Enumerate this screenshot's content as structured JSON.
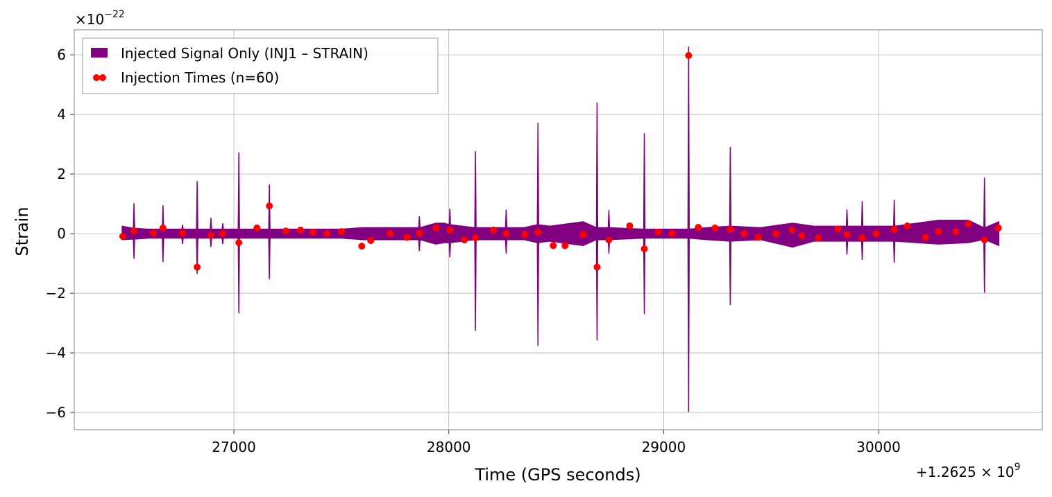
{
  "chart_data": {
    "type": "signal",
    "xlabel": "Time (GPS seconds)",
    "ylabel": "Strain",
    "x_offset": {
      "base": "+1.2625 × 10",
      "exponent": "9"
    },
    "y_offset": {
      "base": "×10",
      "exponent": "−22"
    },
    "xlim": [
      26257,
      30762
    ],
    "ylim": [
      -6.58,
      6.84
    ],
    "xticks": [
      27000,
      28000,
      29000,
      30000
    ],
    "yticks": [
      {
        "value": -6,
        "label": "−6"
      },
      {
        "value": -4,
        "label": "−4"
      },
      {
        "value": -2,
        "label": "−2"
      },
      0,
      2,
      4,
      6
    ],
    "grid": true,
    "legend": "upper left",
    "series": [
      {
        "name": "Injected Signal Only (INJ1 – STRAIN)",
        "color": "#800080",
        "x": [
          26480,
          26532,
          26535,
          26538,
          26600,
          26667,
          26670,
          26673,
          26758,
          26761,
          26764,
          26826,
          26829,
          26832,
          26890,
          26893,
          26896,
          26945,
          26948,
          26951,
          27020,
          27023,
          27026,
          27100,
          27162,
          27165,
          27168,
          27300,
          27500,
          27600,
          27800,
          27860,
          27863,
          27866,
          27940,
          27980,
          28002,
          28005,
          28008,
          28121,
          28124,
          28127,
          28264,
          28267,
          28270,
          28350,
          28412,
          28415,
          28418,
          28470,
          28625,
          28687,
          28690,
          28693,
          28742,
          28745,
          28748,
          28907,
          28910,
          28913,
          29113,
          29116,
          29119,
          29200,
          29307,
          29310,
          29313,
          29450,
          29600,
          29700,
          29850,
          29853,
          29856,
          29921,
          29924,
          29927,
          30000,
          30070,
          30073,
          30076,
          30279,
          30418,
          30490,
          30493,
          30496,
          30560
        ],
        "upper": [
          0.25,
          0.18,
          1.02,
          0.18,
          0.15,
          0.15,
          0.95,
          0.15,
          0.15,
          0.3,
          0.15,
          0.15,
          1.77,
          0.15,
          0.15,
          0.53,
          0.15,
          0.15,
          0.35,
          0.15,
          0.15,
          2.72,
          0.15,
          0.15,
          0.15,
          1.65,
          0.15,
          0.15,
          0.15,
          0.2,
          0.2,
          0.2,
          0.58,
          0.2,
          0.35,
          0.35,
          0.3,
          0.84,
          0.3,
          0.2,
          2.77,
          0.2,
          0.2,
          0.81,
          0.2,
          0.2,
          0.3,
          3.72,
          0.3,
          0.25,
          0.4,
          0.2,
          4.4,
          0.2,
          0.2,
          0.79,
          0.2,
          0.15,
          3.37,
          0.15,
          0.15,
          6.28,
          0.15,
          0.2,
          0.25,
          2.91,
          0.25,
          0.2,
          0.35,
          0.25,
          0.25,
          0.81,
          0.25,
          0.25,
          1.09,
          0.25,
          0.25,
          0.25,
          1.14,
          0.25,
          0.45,
          0.45,
          0.2,
          1.88,
          0.2,
          0.4
        ],
        "lower": [
          -0.2,
          -0.18,
          -0.84,
          -0.18,
          -0.15,
          -0.15,
          -0.95,
          -0.15,
          -0.15,
          -0.35,
          -0.15,
          -0.15,
          -1.35,
          -0.15,
          -0.15,
          -0.44,
          -0.15,
          -0.15,
          -0.35,
          -0.15,
          -0.15,
          -2.67,
          -0.15,
          -0.15,
          -0.15,
          -1.53,
          -0.15,
          -0.15,
          -0.15,
          -0.2,
          -0.2,
          -0.2,
          -0.58,
          -0.2,
          -0.35,
          -0.3,
          -0.3,
          -0.79,
          -0.3,
          -0.2,
          -3.26,
          -0.2,
          -0.2,
          -0.67,
          -0.2,
          -0.2,
          -0.3,
          -3.77,
          -0.3,
          -0.25,
          -0.4,
          -0.2,
          -3.58,
          -0.2,
          -0.2,
          -0.67,
          -0.2,
          -0.15,
          -2.7,
          -0.15,
          -0.15,
          -5.98,
          -0.15,
          -0.2,
          -0.25,
          -2.4,
          -0.25,
          -0.2,
          -0.45,
          -0.25,
          -0.25,
          -0.7,
          -0.25,
          -0.25,
          -0.88,
          -0.25,
          -0.25,
          -0.25,
          -0.98,
          -0.25,
          -0.35,
          -0.3,
          -0.2,
          -1.98,
          -0.2,
          -0.4
        ]
      },
      {
        "name": "Injection Times (n=60)",
        "color": "#ff0000",
        "x": [
          26483,
          26535,
          26625,
          26670,
          26761,
          26829,
          26893,
          26948,
          27023,
          27107,
          27165,
          27242,
          27310,
          27368,
          27433,
          27501,
          27595,
          27637,
          27727,
          27805,
          27863,
          27940,
          28005,
          28073,
          28124,
          28208,
          28267,
          28354,
          28415,
          28486,
          28541,
          28625,
          28690,
          28745,
          28842,
          28910,
          28974,
          29039,
          29116,
          29161,
          29239,
          29310,
          29375,
          29439,
          29523,
          29598,
          29643,
          29720,
          29811,
          29853,
          29924,
          29989,
          30073,
          30134,
          30218,
          30279,
          30360,
          30418,
          30493,
          30557
        ],
        "values": [
          -0.09,
          0.09,
          0.02,
          0.19,
          0.02,
          -1.12,
          -0.05,
          0,
          -0.3,
          0.19,
          0.93,
          0.09,
          0.12,
          0.05,
          0,
          0.07,
          -0.42,
          -0.23,
          0,
          -0.12,
          0.02,
          0.19,
          0.12,
          -0.21,
          -0.14,
          0.12,
          0,
          -0.02,
          0.05,
          -0.4,
          -0.4,
          -0.02,
          -1.12,
          -0.21,
          0.26,
          -0.51,
          0.05,
          0,
          5.98,
          0.21,
          0.19,
          0.14,
          0,
          -0.12,
          0,
          0.12,
          -0.07,
          -0.14,
          0.16,
          -0.02,
          -0.14,
          0,
          0.14,
          0.26,
          -0.12,
          0.07,
          0.07,
          0.33,
          -0.21,
          0.19
        ]
      }
    ]
  }
}
